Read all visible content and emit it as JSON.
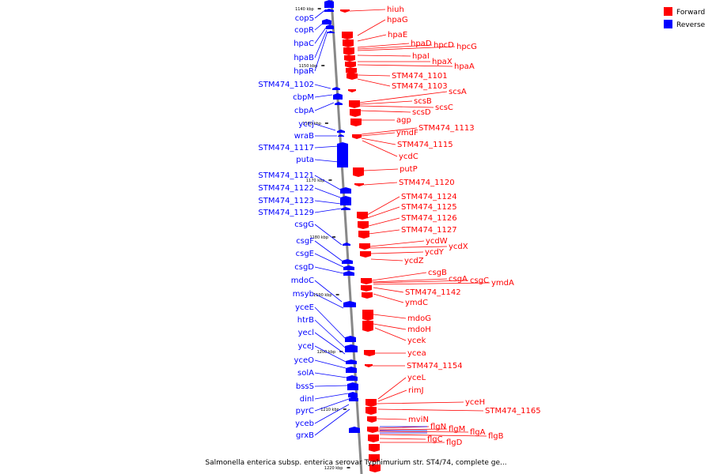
{
  "caption": "Salmonella enterica subsp. enterica serovar Typhimurium str. ST4/74, complete ge...",
  "legend": [
    {
      "label": "Forward",
      "color": "#ff0000"
    },
    {
      "label": "Reverse",
      "color": "#0000ff"
    }
  ],
  "colors": {
    "forward": "#ff0000",
    "reverse": "#0000ff",
    "axis": "#888888"
  },
  "ticks": [
    "1140 kbp",
    "1150 kbp",
    "1160 kbp",
    "1170 kbp",
    "1180 kbp",
    "1190 kbp",
    "1200 kbp",
    "1210 kbp",
    "1220 kbp"
  ],
  "reverse_genes": [
    "copS",
    "copR",
    "hpaC",
    "hpaB",
    "hpaR",
    "STM474_1102",
    "cbpM",
    "cbpA",
    "yccj",
    "wraB",
    "STM474_1117",
    "puta",
    "STM474_1121",
    "STM474_1122",
    "STM474_1123",
    "STM474_1129",
    "csgG",
    "csgF",
    "csgE",
    "csgD",
    "mdoC",
    "msyb",
    "yceE",
    "htrB",
    "yecl",
    "yceJ",
    "yceO",
    "solA",
    "bssS",
    "dinl",
    "pyrC",
    "yceb",
    "grxB"
  ],
  "forward_genes": [
    "hiuh",
    "hpaG",
    "hpaE",
    "hpaD",
    "hpcD",
    "hpcG",
    "hpaI",
    "hpaX",
    "hpaA",
    "STM474_1101",
    "STM474_1103",
    "scsA",
    "scsB",
    "scsC",
    "scsD",
    "agp",
    "STM474_1113",
    "ymdF",
    "STM474_1115",
    "ycdC",
    "putP",
    "STM474_1120",
    "STM474_1124",
    "STM474_1125",
    "STM474_1126",
    "STM474_1127",
    "ycdW",
    "ycdX",
    "ycdY",
    "ycdZ",
    "csgB",
    "csgA",
    "csgC",
    "ymdA",
    "STM474_1142",
    "ymdC",
    "mdoG",
    "mdoH",
    "ycek",
    "ycea",
    "STM474_1154",
    "yceL",
    "rimJ",
    "yceH",
    "STM474_1165",
    "mviN",
    "flgN",
    "flgM",
    "flgA",
    "flgB",
    "flgC",
    "flgD"
  ]
}
